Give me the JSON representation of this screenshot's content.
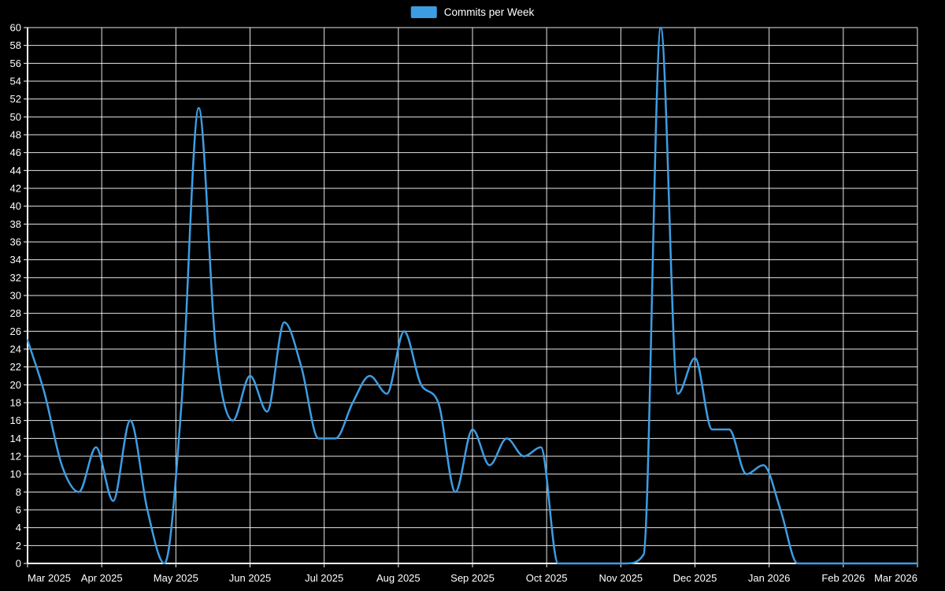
{
  "legend": {
    "label": "Commits per Week"
  },
  "chart_data": {
    "type": "line",
    "title": "Commits per Week",
    "background_color": "#000000",
    "grid_color": "#ffffff",
    "axis_color": "#ffffff",
    "text_color": "#ffffff",
    "legend_position": "top-center",
    "smooth": true,
    "x_tick_labels": [
      "Mar 2025",
      "Apr 2025",
      "May 2025",
      "Jun 2025",
      "Jul 2025",
      "Aug 2025",
      "Sep 2025",
      "Oct 2025",
      "Nov 2025",
      "Dec 2025",
      "Jan 2026",
      "Feb 2026",
      "Mar 2026"
    ],
    "xlabel": "",
    "ylabel": "",
    "ylim": [
      0,
      60
    ],
    "y_tick_step": 2,
    "series": [
      {
        "name": "Commits per Week",
        "color": "#3d9de3",
        "line_width": 2.5,
        "values": [
          25,
          19,
          11,
          8,
          13,
          7,
          16,
          6,
          0,
          18,
          51,
          24,
          16,
          21,
          17,
          27,
          22,
          14,
          14,
          18,
          21,
          19,
          26,
          20,
          18,
          8,
          15,
          11,
          14,
          12,
          13,
          0,
          0,
          0,
          0,
          0,
          1,
          60,
          19,
          23,
          15,
          15,
          10,
          11,
          6,
          0,
          0,
          0,
          0,
          0,
          0,
          0,
          0
        ]
      }
    ]
  }
}
